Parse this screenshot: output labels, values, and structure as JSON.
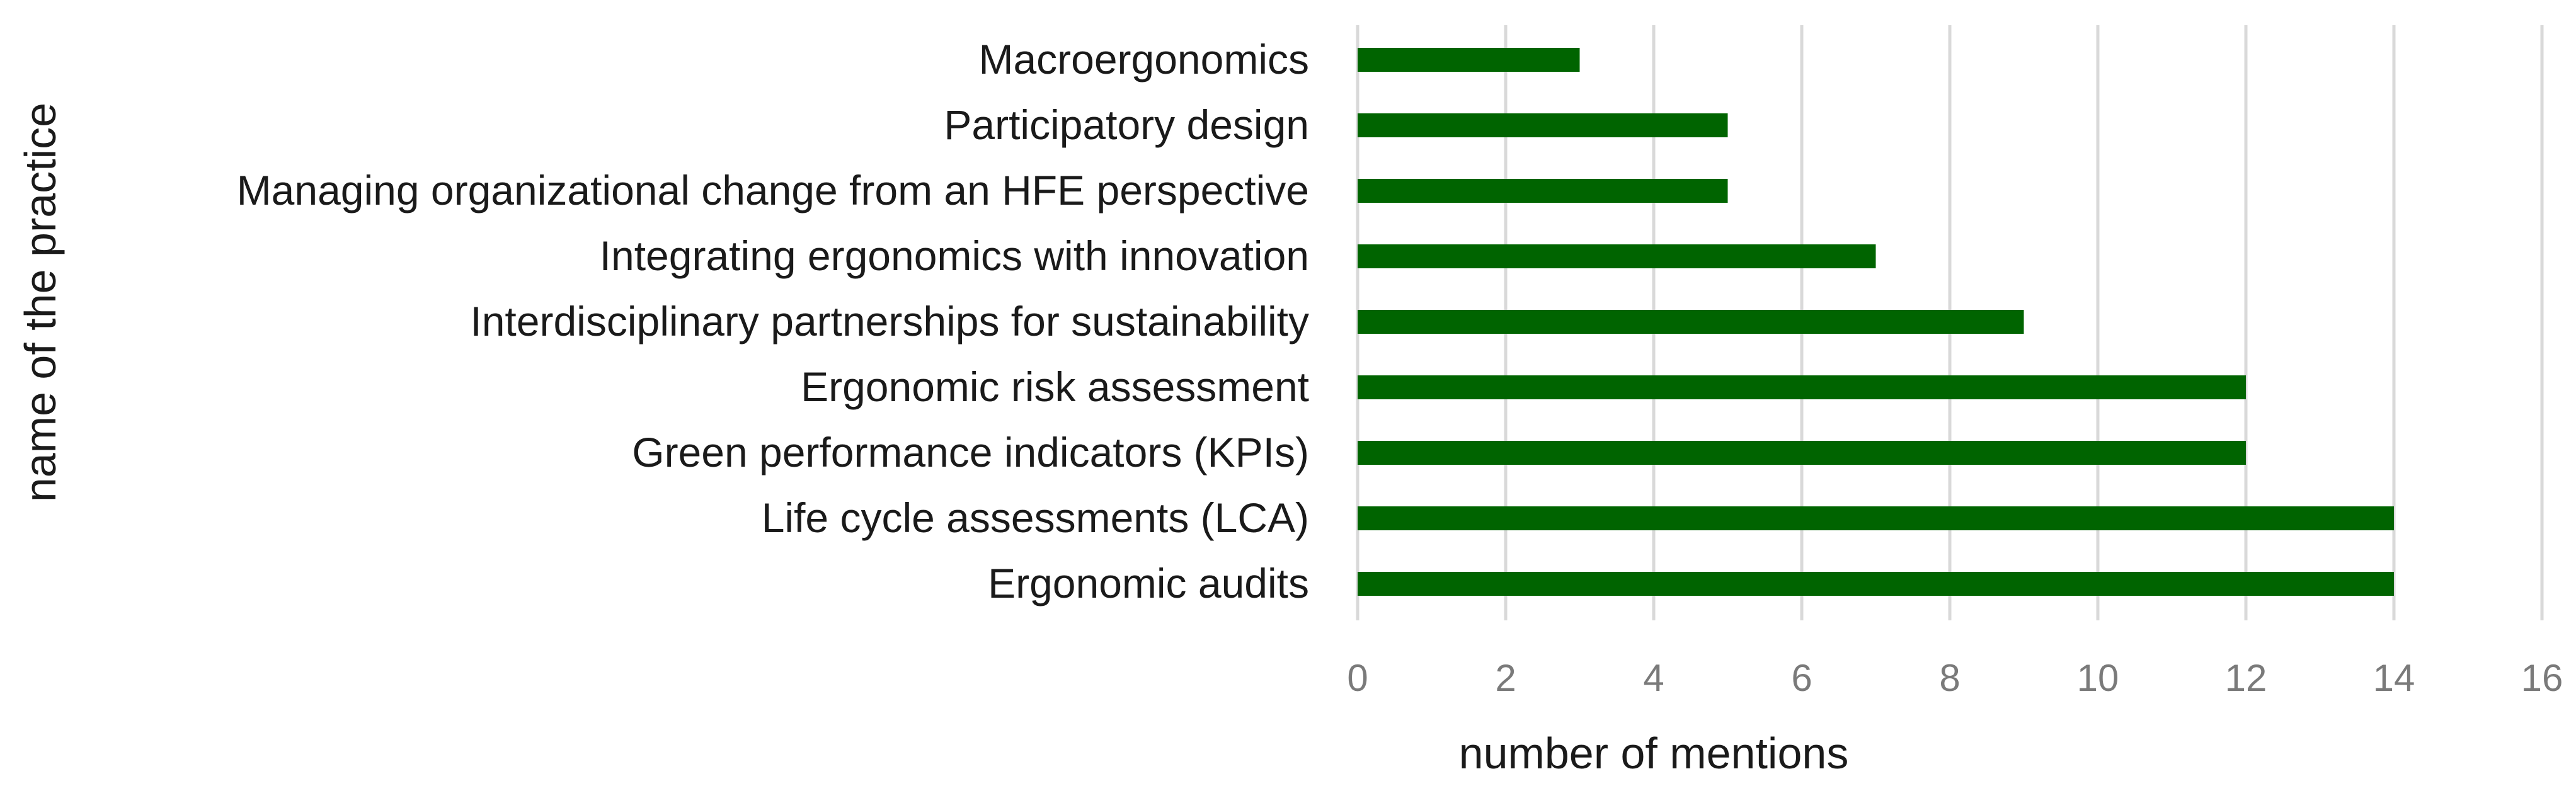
{
  "chart_data": {
    "type": "bar",
    "orientation": "horizontal",
    "title": "",
    "xlabel": "number of mentions",
    "ylabel": "name of the practice",
    "xlim": [
      0,
      16
    ],
    "xticks": [
      "0",
      "2",
      "4",
      "6",
      "8",
      "10",
      "12",
      "14",
      "16"
    ],
    "grid": "vertical",
    "legend": "none",
    "bar_color": "#006400",
    "categories": [
      "Macroergonomics",
      "Participatory design",
      "Managing organizational change from an HFE perspective",
      "Integrating ergonomics with innovation",
      "Interdisciplinary partnerships for sustainability",
      "Ergonomic risk assessment",
      "Green performance indicators (KPIs)",
      "Life cycle assessments (LCA)",
      "Ergonomic audits"
    ],
    "values": [
      3,
      5,
      5,
      7,
      9,
      12,
      12,
      14,
      14
    ]
  }
}
